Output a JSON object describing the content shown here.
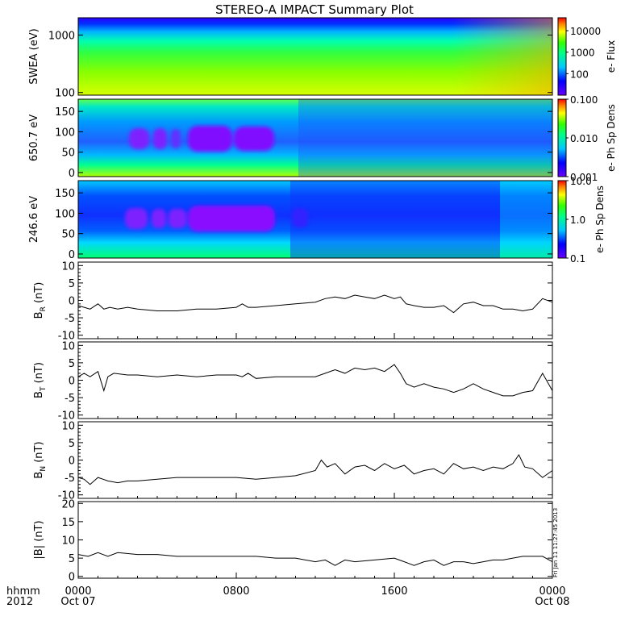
{
  "title": "STEREO-A IMPACT Summary Plot",
  "x_axis": {
    "corner_top": "hhmm",
    "corner_bottom": "2012",
    "ticks": [
      {
        "hours": 0,
        "top": "0000",
        "bottom": "Oct 07"
      },
      {
        "hours": 8,
        "top": "0800",
        "bottom": ""
      },
      {
        "hours": 16,
        "top": "1600",
        "bottom": ""
      },
      {
        "hours": 24,
        "top": "0000",
        "bottom": "Oct 08"
      }
    ],
    "range_hours": [
      0,
      24
    ]
  },
  "stamp": "Fri Jan 11 11:27:45 2013",
  "spectrograms": [
    {
      "id": "swea",
      "ylabel": "SWEA (eV)",
      "ylog": true,
      "yrange": [
        90,
        2000
      ],
      "yticks": [
        {
          "v": 100,
          "label": "100"
        },
        {
          "v": 1000,
          "label": "1000"
        }
      ],
      "colorbar": {
        "title": "e- Flux",
        "log": true,
        "range": [
          10,
          40000
        ],
        "ticks": [
          {
            "v": 100,
            "label": "100"
          },
          {
            "v": 1000,
            "label": "1000"
          },
          {
            "v": 10000,
            "label": "10000"
          }
        ]
      }
    },
    {
      "id": "pad650",
      "ylabel": "650.7 eV",
      "ylog": false,
      "yrange": [
        -10,
        180
      ],
      "yticks": [
        {
          "v": 0,
          "label": "0"
        },
        {
          "v": 50,
          "label": "50"
        },
        {
          "v": 100,
          "label": "100"
        },
        {
          "v": 150,
          "label": "150"
        }
      ],
      "colorbar": {
        "title": "e- Ph Sp Dens",
        "log": true,
        "range": [
          0.001,
          0.1
        ],
        "ticks": [
          {
            "v": 0.001,
            "label": "0.001"
          },
          {
            "v": 0.01,
            "label": "0.010"
          },
          {
            "v": 0.1,
            "label": "0.100"
          }
        ]
      }
    },
    {
      "id": "pad246",
      "ylabel": "246.6 eV",
      "ylog": false,
      "yrange": [
        -10,
        180
      ],
      "yticks": [
        {
          "v": 0,
          "label": "0"
        },
        {
          "v": 50,
          "label": "50"
        },
        {
          "v": 100,
          "label": "100"
        },
        {
          "v": 150,
          "label": "150"
        }
      ],
      "colorbar": {
        "title": "e- Ph Sp Dens",
        "log": true,
        "range": [
          0.1,
          10
        ],
        "ticks": [
          {
            "v": 0.1,
            "label": "0.1"
          },
          {
            "v": 1,
            "label": "1.0"
          },
          {
            "v": 10,
            "label": "10.0"
          }
        ]
      }
    }
  ],
  "chart_data": [
    {
      "type": "line",
      "id": "br",
      "ylabel": "B",
      "ylabel_sub": "R",
      "ylabel_unit": "(nT)",
      "ylim": [
        -11,
        11
      ],
      "yticks": [
        -10,
        -5,
        0,
        5,
        10
      ],
      "x_hours": [
        0,
        0.3,
        0.6,
        1,
        1.3,
        1.6,
        2,
        2.5,
        3,
        4,
        5,
        6,
        7,
        8,
        8.3,
        8.6,
        9,
        10,
        11,
        12,
        12.5,
        13,
        13.5,
        14,
        14.5,
        15,
        15.5,
        16,
        16.3,
        16.6,
        17,
        17.5,
        18,
        18.5,
        19,
        19.5,
        20,
        20.5,
        21,
        21.5,
        22,
        22.5,
        23,
        23.5,
        24
      ],
      "values": [
        -1.5,
        -2,
        -2.5,
        -1,
        -2.5,
        -2,
        -2.5,
        -2,
        -2.5,
        -3,
        -3,
        -2.5,
        -2.5,
        -2,
        -1,
        -2,
        -2,
        -1.5,
        -1,
        -0.5,
        0.5,
        1,
        0.5,
        1.5,
        1,
        0.5,
        1.5,
        0.5,
        1,
        -1,
        -1.5,
        -2,
        -2,
        -1.5,
        -3.5,
        -1,
        -0.5,
        -1.5,
        -1.5,
        -2.5,
        -2.5,
        -3,
        -2.5,
        0.5,
        -0.5
      ]
    },
    {
      "type": "line",
      "id": "bt",
      "ylabel": "B",
      "ylabel_sub": "T",
      "ylabel_unit": "(nT)",
      "ylim": [
        -11,
        11
      ],
      "yticks": [
        -10,
        -5,
        0,
        5,
        10
      ],
      "x_hours": [
        0,
        0.3,
        0.6,
        1,
        1.3,
        1.5,
        1.8,
        2.5,
        3,
        4,
        5,
        6,
        7,
        8,
        8.3,
        8.6,
        9,
        10,
        11,
        12,
        12.5,
        13,
        13.5,
        14,
        14.5,
        15,
        15.5,
        16,
        16.3,
        16.6,
        17,
        17.5,
        18,
        18.5,
        19,
        19.5,
        20,
        20.5,
        21,
        21.5,
        22,
        22.5,
        23,
        23.5,
        24
      ],
      "values": [
        1,
        2,
        1,
        2.5,
        -3,
        1,
        2,
        1.5,
        1.5,
        1,
        1.5,
        1,
        1.5,
        1.5,
        1,
        2,
        0.5,
        1,
        1,
        1,
        2,
        3,
        2,
        3.5,
        3,
        3.5,
        2.5,
        4.5,
        2,
        -1,
        -2,
        -1,
        -2,
        -2.5,
        -3.5,
        -2.5,
        -1,
        -2.5,
        -3.5,
        -4.5,
        -4.5,
        -3.5,
        -3,
        2,
        -3
      ]
    },
    {
      "type": "line",
      "id": "bn",
      "ylabel": "B",
      "ylabel_sub": "N",
      "ylabel_unit": "(nT)",
      "ylim": [
        -11,
        11
      ],
      "yticks": [
        -10,
        -5,
        0,
        5,
        10
      ],
      "x_hours": [
        0,
        0.3,
        0.6,
        1,
        1.5,
        2,
        2.5,
        3,
        4,
        5,
        6,
        7,
        8,
        9,
        10,
        11,
        12,
        12.3,
        12.6,
        13,
        13.5,
        14,
        14.5,
        15,
        15.5,
        16,
        16.5,
        17,
        17.5,
        18,
        18.5,
        19,
        19.5,
        20,
        20.5,
        21,
        21.5,
        22,
        22.3,
        22.6,
        23,
        23.5,
        24
      ],
      "values": [
        -5,
        -5.5,
        -7,
        -5,
        -6,
        -6.5,
        -6,
        -6,
        -5.5,
        -5,
        -5,
        -5,
        -5,
        -5.5,
        -5,
        -4.5,
        -3,
        0,
        -2,
        -1,
        -4,
        -2,
        -1.5,
        -3,
        -1,
        -2.5,
        -1.5,
        -4,
        -3,
        -2.5,
        -4,
        -1,
        -2.5,
        -2,
        -3,
        -2,
        -2.5,
        -1,
        1.5,
        -2,
        -2.5,
        -5,
        -3
      ]
    },
    {
      "type": "line",
      "id": "bmag",
      "ylabel": "|B|",
      "ylabel_sub": "",
      "ylabel_unit": "(nT)",
      "ylim": [
        -0.5,
        20.5
      ],
      "yticks": [
        0,
        5,
        10,
        15,
        20
      ],
      "x_hours": [
        0,
        0.5,
        1,
        1.5,
        2,
        3,
        4,
        5,
        6,
        7,
        8,
        9,
        10,
        11,
        12,
        12.5,
        13,
        13.5,
        14,
        15,
        16,
        16.5,
        17,
        17.5,
        18,
        18.5,
        19,
        19.5,
        20,
        20.5,
        21,
        21.5,
        22,
        22.5,
        23,
        23.5,
        24
      ],
      "values": [
        6,
        5.5,
        6.5,
        5.5,
        6.5,
        6,
        6,
        5.5,
        5.5,
        5.5,
        5.5,
        5.5,
        5,
        5,
        4,
        4.5,
        3,
        4.5,
        4,
        4.5,
        5,
        4,
        3,
        4,
        4.5,
        3,
        4,
        4,
        3.5,
        4,
        4.5,
        4.5,
        5,
        5.5,
        5.5,
        5.5,
        4
      ]
    }
  ]
}
